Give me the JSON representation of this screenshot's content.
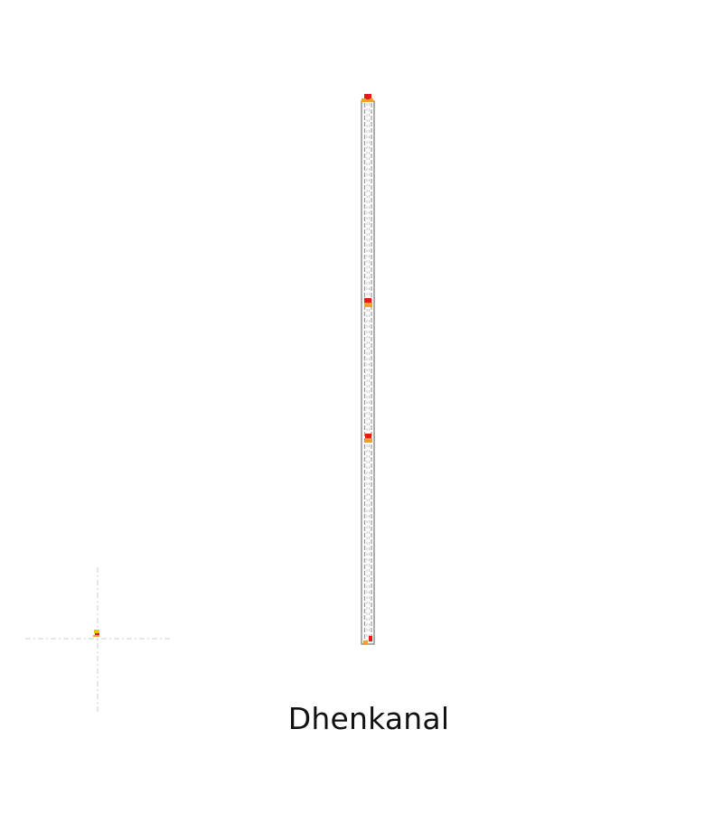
{
  "map": {
    "label": "Dhenkanal",
    "colors": {
      "road_outer": "#8a8a8a",
      "road_inner": "#b8b8b8",
      "road_fill": "#ffffff",
      "marker_red": "#e41a1c",
      "marker_orange": "#f0a030",
      "marker_yellow": "#f2c200",
      "crosshair": "#cccccc"
    },
    "icons": {
      "markers": "station-marker-icon",
      "locator": "crosshair-locator-icon"
    }
  }
}
